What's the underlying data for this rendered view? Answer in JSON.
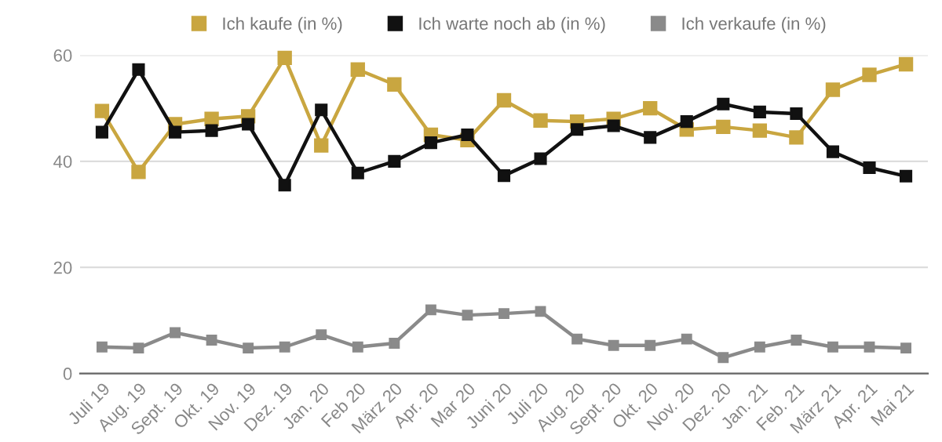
{
  "chart_data": {
    "type": "line",
    "categories": [
      "Juli 19",
      "Aug. 19",
      "Sept. 19",
      "Okt. 19",
      "Nov. 19",
      "Dez. 19",
      "Jan. 20",
      "Feb 20",
      "März 20",
      "Apr. 20",
      "Mar 20",
      "Juni 20",
      "Juli 20",
      "Aug. 20",
      "Sept. 20",
      "Okt. 20",
      "Nov. 20",
      "Dez. 20",
      "Jan. 21",
      "Feb. 21",
      "März 21",
      "Apr. 21",
      "Mai 21"
    ],
    "series": [
      {
        "name": "Ich kaufe (in %)",
        "color": "#c9a640",
        "values": [
          49.5,
          38,
          47,
          48,
          48.5,
          59.5,
          43,
          57.3,
          54.5,
          45,
          44,
          51.5,
          47.7,
          47.5,
          48,
          50,
          46,
          46.5,
          45.8,
          44.5,
          53.5,
          56.3,
          58.3
        ]
      },
      {
        "name": "Ich warte noch ab (in %)",
        "color": "#111111",
        "values": [
          45.5,
          57.3,
          45.5,
          45.8,
          47,
          35.5,
          49.7,
          37.8,
          40,
          43.5,
          45,
          37.3,
          40.5,
          46,
          46.7,
          44.5,
          47.5,
          50.8,
          49.3,
          49,
          41.8,
          38.8,
          37.2
        ]
      },
      {
        "name": "Ich verkaufe (in %)",
        "color": "#8a8a8a",
        "values": [
          5,
          4.8,
          7.7,
          6.3,
          4.8,
          5,
          7.3,
          5,
          5.7,
          12,
          11,
          11.3,
          11.7,
          6.5,
          5.3,
          5.3,
          6.5,
          3,
          5,
          6.3,
          5,
          5,
          4.8
        ]
      }
    ],
    "ylim": [
      0,
      60
    ],
    "yticks": [
      0,
      20,
      40,
      60
    ],
    "grid": "y",
    "legend": "top",
    "marker": "square",
    "line_style": "solid"
  }
}
